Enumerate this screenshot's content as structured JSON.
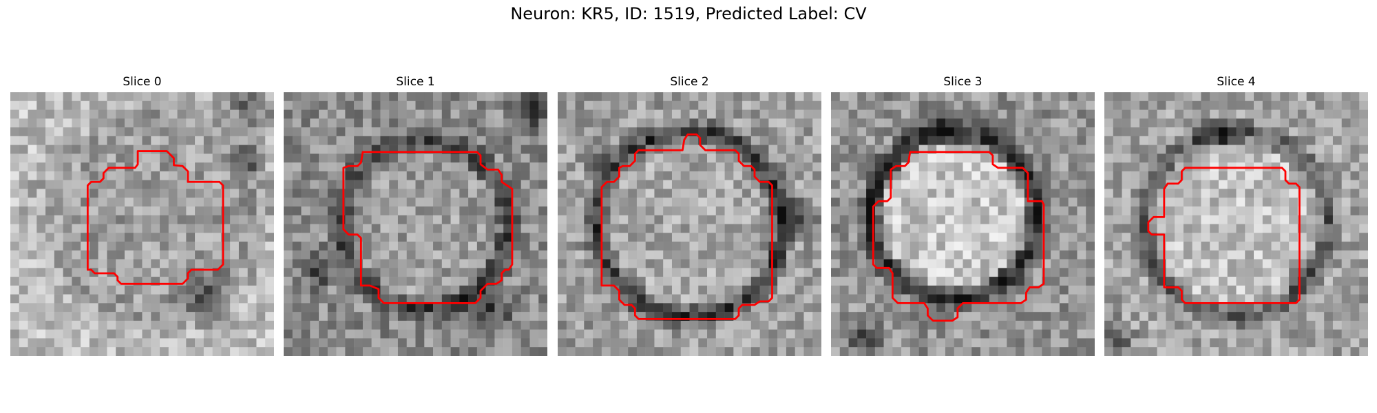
{
  "figure": {
    "title": "Neuron: KR5, ID: 1519, Predicted Label: CV"
  },
  "colors": {
    "contour": "#ff0000",
    "colormap": "gray"
  },
  "panels": [
    {
      "title": "Slice 0"
    },
    {
      "title": "Slice 1"
    },
    {
      "title": "Slice 2"
    },
    {
      "title": "Slice 3"
    },
    {
      "title": "Slice 4"
    }
  ]
}
